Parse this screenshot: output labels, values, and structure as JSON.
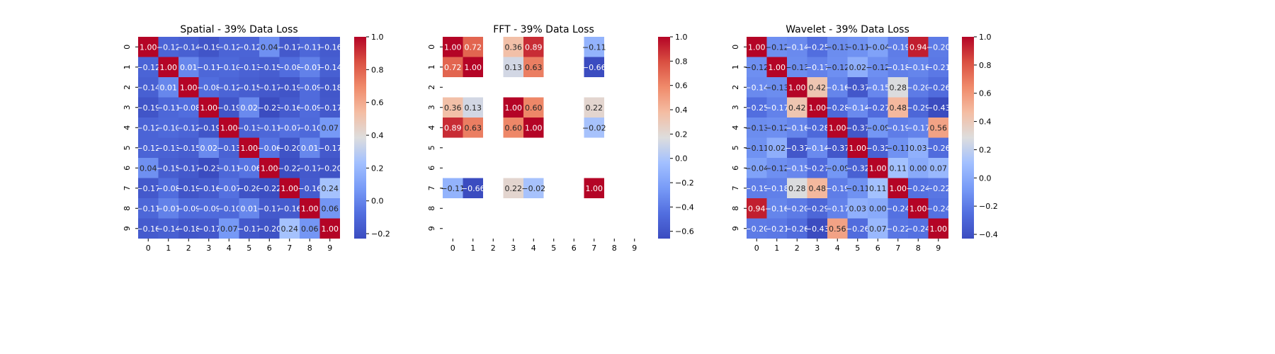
{
  "chart_data": [
    {
      "type": "heatmap",
      "title": "Spatial - 39% Data Loss",
      "xlabel": "",
      "ylabel": "",
      "x_ticks": [
        "0",
        "1",
        "2",
        "3",
        "4",
        "5",
        "6",
        "7",
        "8",
        "9"
      ],
      "y_ticks": [
        "0",
        "1",
        "2",
        "3",
        "4",
        "5",
        "6",
        "7",
        "8",
        "9"
      ],
      "colormap": "coolwarm",
      "vmin": -0.23,
      "vmax": 1.0,
      "colorbar_ticks": [
        -0.2,
        0.0,
        0.2,
        0.4,
        0.6,
        0.8,
        1.0
      ],
      "colorbar_tick_labels": [
        "−0.2",
        "0.0",
        "0.2",
        "0.4",
        "0.6",
        "0.8",
        "1.0"
      ],
      "grid": false,
      "values": [
        [
          1.0,
          -0.12,
          -0.14,
          -0.19,
          -0.12,
          -0.12,
          0.04,
          -0.17,
          -0.11,
          -0.16
        ],
        [
          -0.12,
          1.0,
          0.01,
          -0.11,
          -0.1,
          -0.13,
          -0.15,
          -0.08,
          -0.01,
          -0.14
        ],
        [
          -0.14,
          0.01,
          1.0,
          -0.08,
          -0.12,
          -0.15,
          -0.17,
          -0.19,
          -0.09,
          -0.18
        ],
        [
          -0.19,
          -0.11,
          -0.08,
          1.0,
          -0.19,
          0.02,
          -0.23,
          -0.16,
          -0.09,
          -0.17
        ],
        [
          -0.12,
          -0.1,
          -0.12,
          -0.19,
          1.0,
          -0.13,
          -0.11,
          -0.07,
          -0.1,
          0.07
        ],
        [
          -0.12,
          -0.13,
          -0.15,
          0.02,
          -0.13,
          1.0,
          -0.06,
          -0.2,
          0.01,
          -0.17
        ],
        [
          0.04,
          -0.15,
          -0.17,
          -0.23,
          -0.11,
          -0.06,
          1.0,
          -0.22,
          -0.17,
          -0.2
        ],
        [
          -0.17,
          -0.08,
          -0.19,
          -0.16,
          -0.07,
          -0.2,
          -0.22,
          1.0,
          -0.16,
          0.24
        ],
        [
          -0.11,
          -0.01,
          -0.09,
          -0.09,
          -0.1,
          0.01,
          -0.17,
          -0.16,
          1.0,
          0.06
        ],
        [
          -0.16,
          -0.14,
          -0.18,
          -0.17,
          0.07,
          -0.17,
          -0.2,
          0.24,
          0.06,
          1.0
        ]
      ]
    },
    {
      "type": "heatmap",
      "title": "FFT - 39% Data Loss",
      "xlabel": "",
      "ylabel": "",
      "x_ticks": [
        "0",
        "1",
        "2",
        "3",
        "4",
        "5",
        "6",
        "7",
        "8",
        "9"
      ],
      "y_ticks": [
        "0",
        "1",
        "2",
        "3",
        "4",
        "5",
        "6",
        "7",
        "8",
        "9"
      ],
      "colormap": "coolwarm",
      "vmin": -0.66,
      "vmax": 1.0,
      "colorbar_ticks": [
        -0.6,
        -0.4,
        -0.2,
        0.0,
        0.2,
        0.4,
        0.6,
        0.8,
        1.0
      ],
      "colorbar_tick_labels": [
        "−0.6",
        "−0.4",
        "−0.2",
        "0.0",
        "0.2",
        "0.4",
        "0.6",
        "0.8",
        "1.0"
      ],
      "grid": false,
      "values": [
        [
          1.0,
          0.72,
          null,
          0.36,
          0.89,
          null,
          null,
          -0.11,
          null,
          null
        ],
        [
          0.72,
          1.0,
          null,
          0.13,
          0.63,
          null,
          null,
          -0.66,
          null,
          null
        ],
        [
          null,
          null,
          null,
          null,
          null,
          null,
          null,
          null,
          null,
          null
        ],
        [
          0.36,
          0.13,
          null,
          1.0,
          0.6,
          null,
          null,
          0.22,
          null,
          null
        ],
        [
          0.89,
          0.63,
          null,
          0.6,
          1.0,
          null,
          null,
          -0.02,
          null,
          null
        ],
        [
          null,
          null,
          null,
          null,
          null,
          null,
          null,
          null,
          null,
          null
        ],
        [
          null,
          null,
          null,
          null,
          null,
          null,
          null,
          null,
          null,
          null
        ],
        [
          -0.11,
          -0.66,
          null,
          0.22,
          -0.02,
          null,
          null,
          1.0,
          null,
          null
        ],
        [
          null,
          null,
          null,
          null,
          null,
          null,
          null,
          null,
          null,
          null
        ],
        [
          null,
          null,
          null,
          null,
          null,
          null,
          null,
          null,
          null,
          null
        ]
      ]
    },
    {
      "type": "heatmap",
      "title": "Wavelet - 39% Data Loss",
      "xlabel": "",
      "ylabel": "",
      "x_ticks": [
        "0",
        "1",
        "2",
        "3",
        "4",
        "5",
        "6",
        "7",
        "8",
        "9"
      ],
      "y_ticks": [
        "0",
        "1",
        "2",
        "3",
        "4",
        "5",
        "6",
        "7",
        "8",
        "9"
      ],
      "colormap": "coolwarm",
      "vmin": -0.43,
      "vmax": 1.0,
      "colorbar_ticks": [
        -0.4,
        -0.2,
        0.0,
        0.2,
        0.4,
        0.6,
        0.8,
        1.0
      ],
      "colorbar_tick_labels": [
        "−0.4",
        "−0.2",
        "0.0",
        "0.2",
        "0.4",
        "0.6",
        "0.8",
        "1.0"
      ],
      "grid": false,
      "values": [
        [
          1.0,
          -0.12,
          -0.14,
          -0.25,
          -0.13,
          -0.11,
          -0.04,
          -0.19,
          0.94,
          -0.2
        ],
        [
          -0.12,
          1.0,
          -0.13,
          -0.17,
          -0.12,
          0.02,
          -0.12,
          -0.18,
          -0.16,
          -0.21
        ],
        [
          -0.14,
          -0.13,
          1.0,
          0.42,
          -0.16,
          -0.37,
          -0.15,
          0.28,
          -0.2,
          -0.26
        ],
        [
          -0.25,
          -0.17,
          0.42,
          1.0,
          -0.28,
          -0.14,
          -0.27,
          0.48,
          -0.29,
          -0.43
        ],
        [
          -0.13,
          -0.12,
          -0.16,
          -0.28,
          1.0,
          -0.37,
          -0.09,
          -0.19,
          -0.17,
          0.56
        ],
        [
          -0.11,
          0.02,
          -0.37,
          -0.14,
          -0.37,
          1.0,
          -0.32,
          -0.11,
          0.03,
          -0.26
        ],
        [
          -0.04,
          -0.12,
          -0.15,
          -0.27,
          -0.09,
          -0.32,
          1.0,
          0.11,
          -0.0,
          0.07
        ],
        [
          -0.19,
          -0.18,
          0.28,
          0.48,
          -0.19,
          -0.11,
          0.11,
          1.0,
          -0.24,
          -0.22
        ],
        [
          0.94,
          -0.16,
          -0.2,
          -0.29,
          -0.17,
          0.03,
          -0.0,
          -0.24,
          1.0,
          -0.24
        ],
        [
          -0.2,
          -0.21,
          -0.26,
          -0.43,
          0.56,
          -0.26,
          0.07,
          -0.22,
          -0.24,
          1.0
        ]
      ]
    }
  ]
}
